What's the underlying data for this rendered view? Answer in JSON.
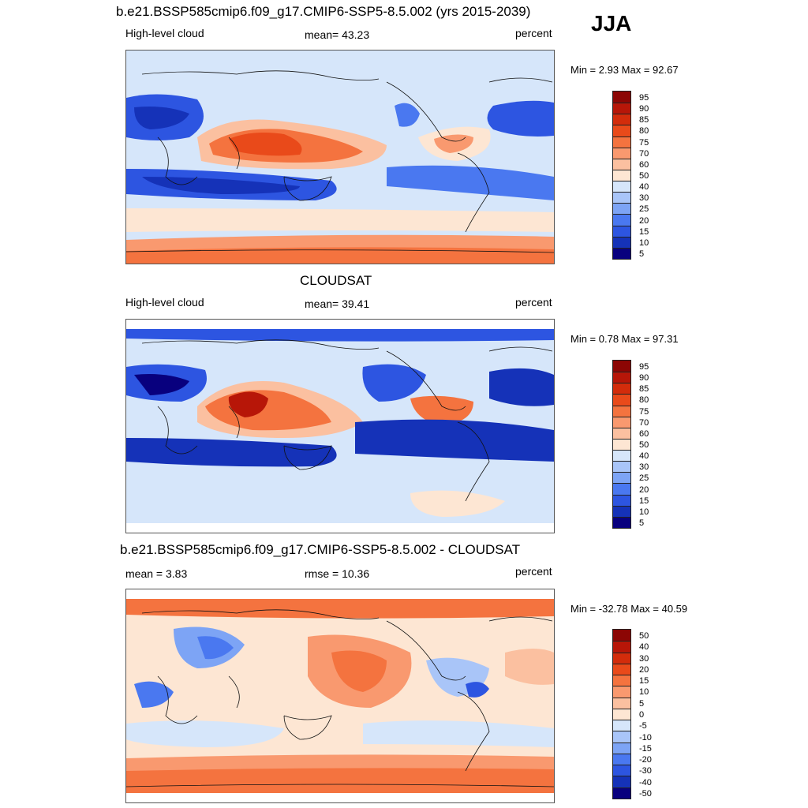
{
  "season": "JJA",
  "colors": {
    "nine": [
      "#08007e",
      "#1532b8",
      "#2d55e1",
      "#4a78f0",
      "#7da4f5",
      "#a9c5f8",
      "#d6e6fa",
      "#fde6d3",
      "#fbc0a0",
      "#f9996f",
      "#f4733f",
      "#e94a1a",
      "#d32c0b",
      "#b71608",
      "#8c0604"
    ],
    "diff": [
      "#08007e",
      "#1532b8",
      "#2d55e1",
      "#4a78f0",
      "#7da4f5",
      "#a9c5f8",
      "#d6e6fa",
      "#fde6d3",
      "#fbc0a0",
      "#f9996f",
      "#f4733f",
      "#e94a1a",
      "#d32c0b",
      "#b71608",
      "#8c0604"
    ]
  },
  "panels": [
    {
      "title": "b.e21.BSSP585cmip6.f09_g17.CMIP6-SSP5-8.5.002 (yrs 2015-2039)",
      "left_label": "High-level cloud",
      "center_label": "mean=  43.23",
      "right_label": "percent",
      "minmax": "Min =   2.93 Max =  92.67",
      "colorbar_levels": [
        "95",
        "90",
        "85",
        "80",
        "75",
        "70",
        "60",
        "50",
        "40",
        "30",
        "25",
        "20",
        "15",
        "10",
        "5"
      ]
    },
    {
      "title": "CLOUDSAT",
      "left_label": "High-level cloud",
      "center_label": "mean=  39.41",
      "right_label": "percent",
      "minmax": "Min =   0.78 Max =  97.31",
      "colorbar_levels": [
        "95",
        "90",
        "85",
        "80",
        "75",
        "70",
        "60",
        "50",
        "40",
        "30",
        "25",
        "20",
        "15",
        "10",
        "5"
      ]
    },
    {
      "title": "b.e21.BSSP585cmip6.f09_g17.CMIP6-SSP5-8.5.002 - CLOUDSAT",
      "left_label": "mean =   3.83",
      "center_label": "rmse =  10.36",
      "right_label": "percent",
      "minmax": "Min = -32.78 Max =  40.59",
      "colorbar_levels": [
        "50",
        "40",
        "30",
        "20",
        "15",
        "10",
        "5",
        "0",
        "-5",
        "-10",
        "-15",
        "-20",
        "-30",
        "-40",
        "-50"
      ]
    }
  ]
}
